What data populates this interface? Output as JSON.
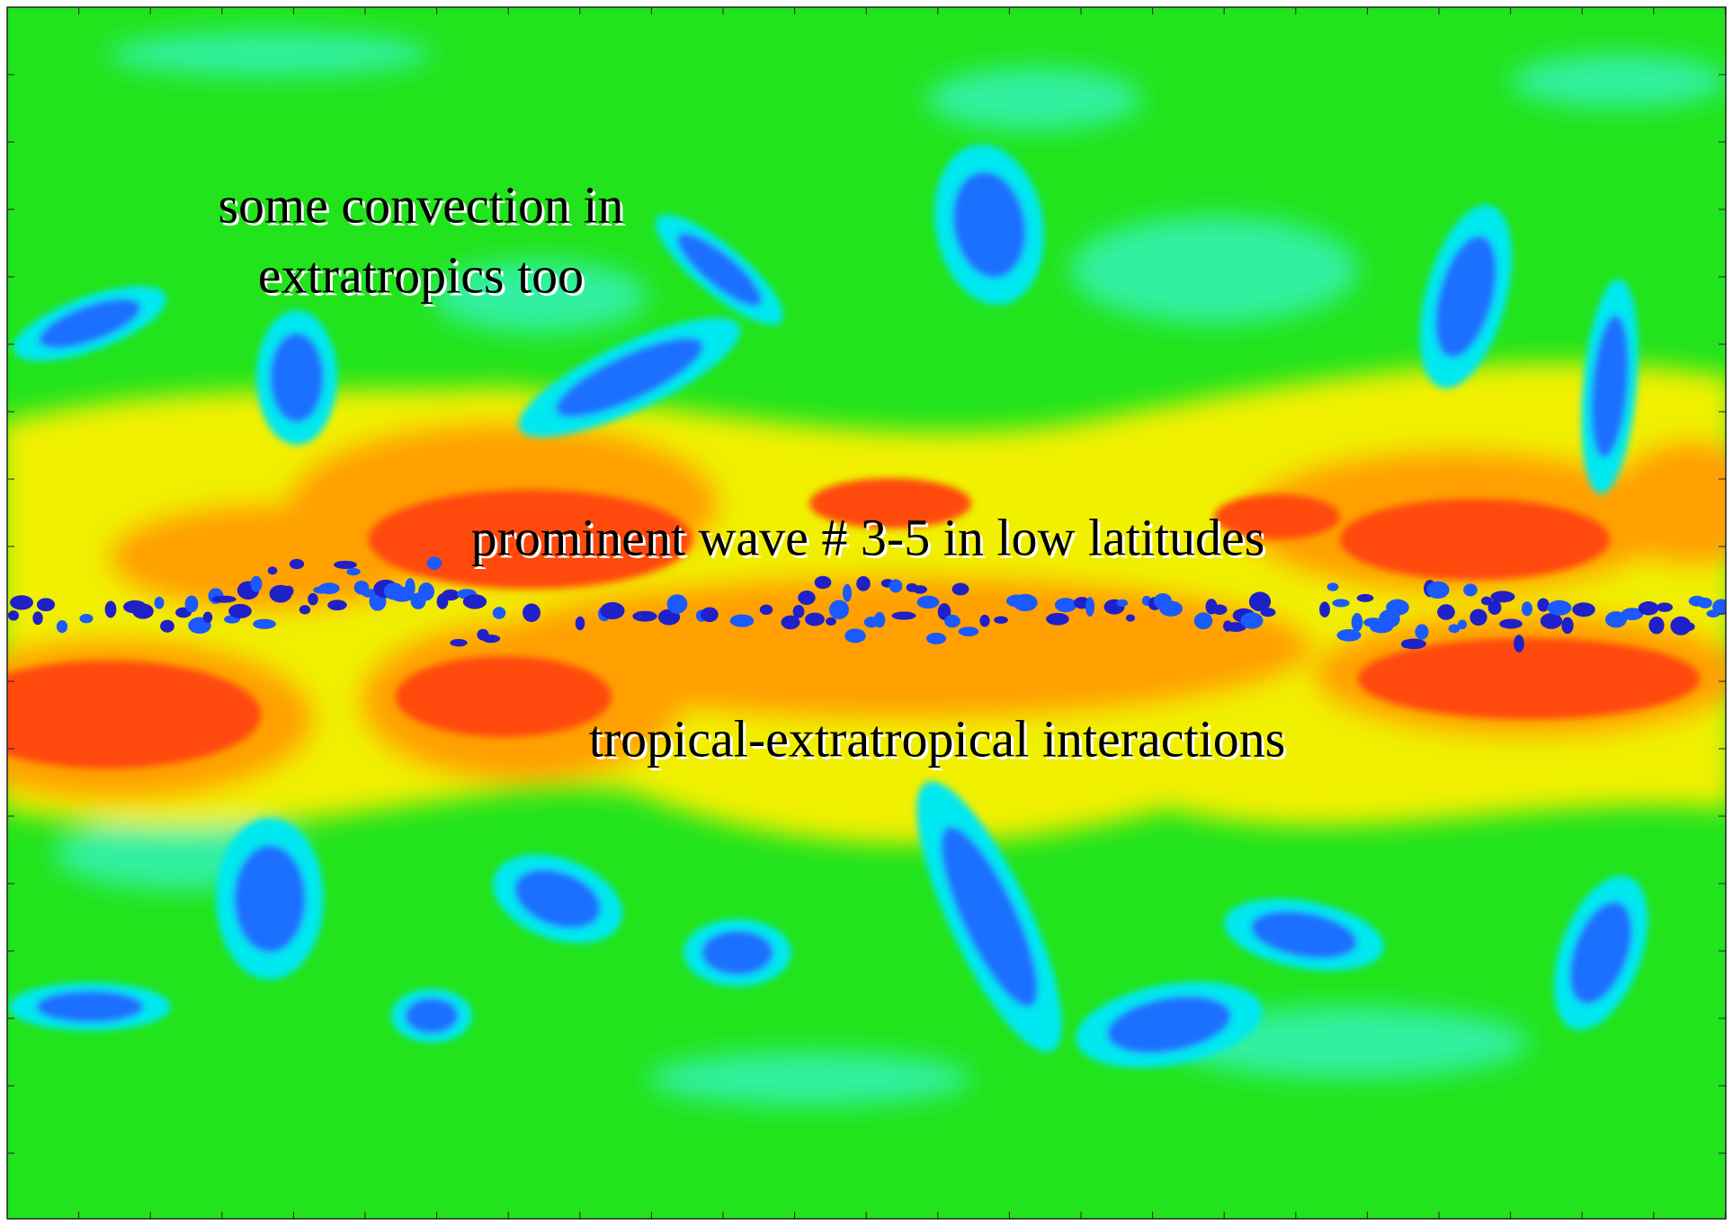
{
  "annotations": [
    "some convection in",
    "extratropics too",
    "prominent wave # 3-5 in low latitudes",
    "tropical-extratropical interactions"
  ]
}
